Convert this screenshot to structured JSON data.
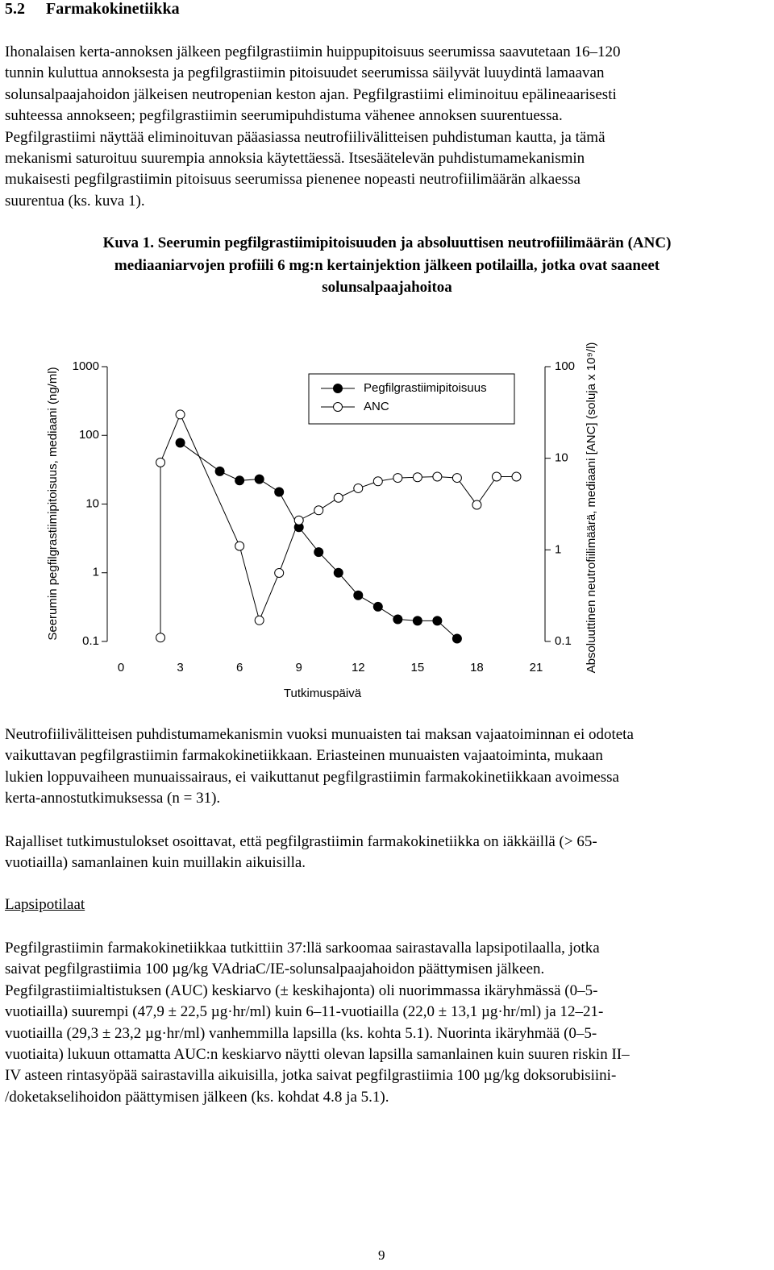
{
  "header": {
    "number": "5.2",
    "title": "Farmakokinetiikka"
  },
  "paragraphs": [
    {
      "lines": [
        "Ihonalaisen kerta-annoksen jälkeen pegfilgrastiimin huippupitoisuus seerumissa saavutetaan 16–120",
        "tunnin kuluttua annoksesta ja pegfilgrastiimin pitoisuudet seerumissa säilyvät luuydintä lamaavan",
        "solunsalpaajahoidon jälkeisen neutropenian keston ajan. Pegfilgrastiimi eliminoituu epälineaarisesti",
        "suhteessa annokseen; pegfilgrastiimin seerumipuhdistuma vähenee annoksen suurentuessa.",
        "Pegfilgrastiimi näyttää eliminoituvan pääasiassa neutrofiilivälitteisen puhdistuman kautta, ja tämä",
        "mekanismi saturoituu suurempia annoksia käytettäessä. Itsesäätelevän puhdistumamekanismin",
        "mukaisesti pegfilgrastiimin pitoisuus seerumissa pienenee nopeasti neutrofiilimäärän alkaessa",
        "suurentua (ks. kuva 1)."
      ]
    },
    {
      "lines": [
        "Neutrofiilivälitteisen puhdistumamekanismin vuoksi munuaisten tai maksan vajaatoiminnan ei odoteta",
        "vaikuttavan pegfilgrastiimin farmakokinetiikkaan. Eriasteinen munuaisten vajaatoiminta, mukaan",
        "lukien loppuvaiheen munuaissairaus, ei vaikuttanut pegfilgrastiimin farmakokinetiikkaan avoimessa",
        "kerta-annostutkimuksessa (n = 31)."
      ]
    },
    {
      "lines": [
        "Rajalliset tutkimustulokset osoittavat, että pegfilgrastiimin farmakokinetiikka on iäkkäillä (> 65-",
        "vuotiailla) samanlainen kuin muillakin aikuisilla."
      ]
    },
    {
      "lines": [
        "Pegfilgrastiimin farmakokinetiikkaa tutkittiin 37:llä sarkoomaa sairastavalla lapsipotilaalla, jotka",
        "saivat pegfilgrastiimia 100 µg/kg VAdriaC/IE-solunsalpaajahoidon päättymisen jälkeen.",
        "Pegfilgrastiimialtistuksen (AUC) keskiarvo (± keskihajonta) oli nuorimmassa ikäryhmässä (0–5-",
        "vuotiailla) suurempi (47,9 ± 22,5 µg·hr/ml) kuin 6–11-vuotiailla (22,0 ± 13,1 µg·hr/ml) ja 12–21-",
        "vuotiailla (29,3 ± 23,2 µg·hr/ml) vanhemmilla lapsilla (ks. kohta 5.1). Nuorinta ikäryhmää (0–5-",
        "vuotiaita) lukuun ottamatta AUC:n keskiarvo näytti olevan lapsilla samanlainen kuin suuren riskin II–",
        "IV asteen rintasyöpää sairastavilla aikuisilla, jotka saivat pegfilgrastiimia 100 µg/kg doksorubisiini-",
        "/doketakselihoidon päättymisen jälkeen (ks. kohdat 4.8 ja 5.1)."
      ]
    }
  ],
  "caption": {
    "lines": [
      "Kuva 1. Seerumin pegfilgrastiimipitoisuuden ja absoluuttisen neutrofiilimäärän (ANC)",
      "mediaaniarvojen profiili 6 mg:n kertainjektion jälkeen potilailla, jotka ovat saaneet",
      "solunsalpaajahoitoa"
    ]
  },
  "subheading": "Lapsipotilaat",
  "page_number": "9",
  "chart_data": {
    "type": "line",
    "xlabel": "Tutkimuspäivä",
    "ylabel": "Seerumin pegfilgrastiimipitoisuus, mediaani (ng/ml)",
    "y2label": "Absoluuttinen neutrofiilimäärä, mediaani [ANC] (soluja x 10⁹/l)",
    "xlim": [
      0,
      21
    ],
    "xticks": [
      0,
      3,
      6,
      9,
      12,
      15,
      18,
      21
    ],
    "ylim": [
      0.1,
      1000
    ],
    "yticks": [
      1000,
      100,
      10,
      1,
      0.1
    ],
    "ylog": true,
    "y2lim": [
      0.1,
      100
    ],
    "y2ticks": [
      100,
      10,
      1,
      0.1
    ],
    "y2log": true,
    "legend": "upper right",
    "series": [
      {
        "name": "Pegfilgrastiimipitoisuus",
        "color": "#000000",
        "marker": "filled",
        "x": [
          3,
          5,
          6,
          7,
          8,
          9,
          10,
          11,
          12,
          13,
          14,
          15,
          16,
          17
        ],
        "values": [
          78,
          30,
          22,
          23,
          15,
          4.6,
          2.0,
          1.0,
          0.47,
          0.32,
          0.21,
          0.2,
          0.2,
          0.11
        ]
      },
      {
        "name": "ANC",
        "color": "#000000",
        "marker": "open",
        "axis": "y2",
        "x": [
          2,
          2,
          3,
          6,
          7,
          8,
          9,
          10,
          11,
          12,
          13,
          14,
          15,
          16,
          17,
          18,
          19,
          20
        ],
        "values": [
          0.11,
          9.0,
          30,
          1.1,
          0.17,
          0.56,
          2.1,
          2.7,
          3.7,
          4.7,
          5.6,
          6.1,
          6.2,
          6.3,
          6.1,
          3.1,
          6.3,
          6.3
        ]
      }
    ]
  }
}
